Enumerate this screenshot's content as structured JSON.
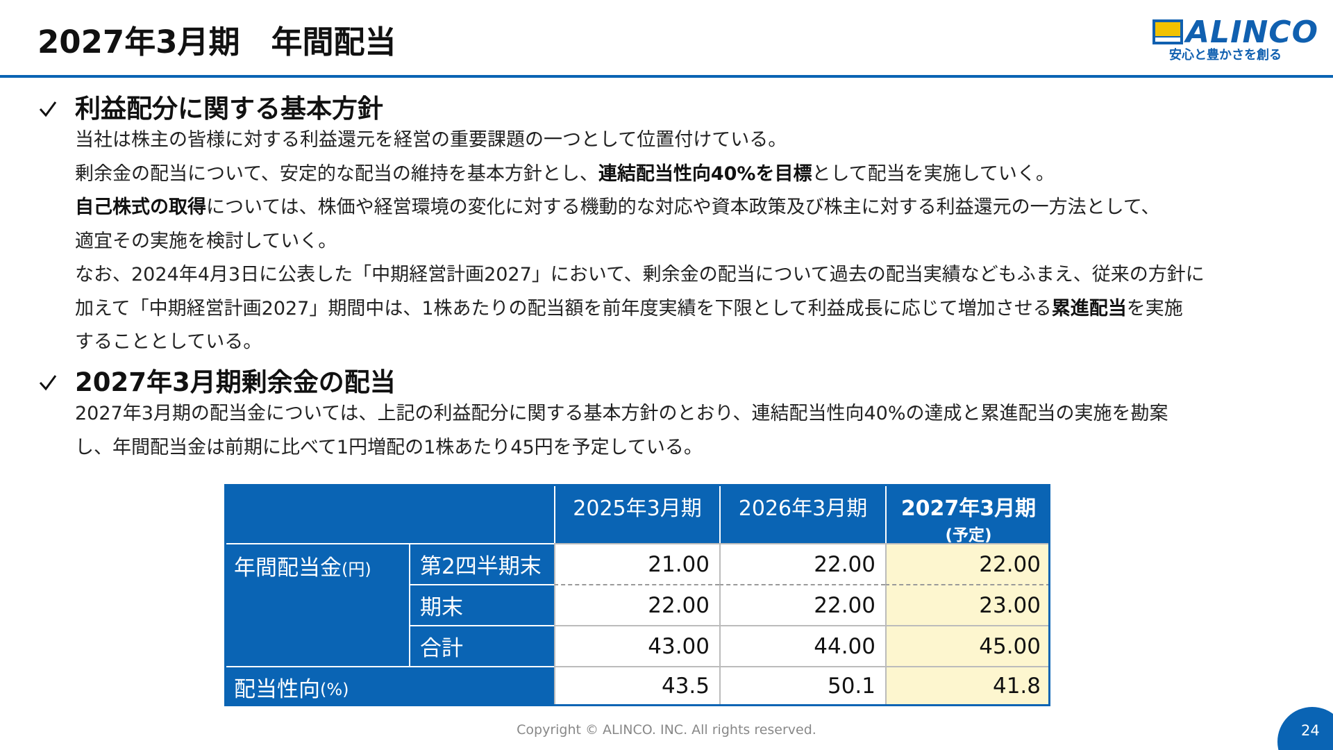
{
  "header": {
    "title": "2027年3月期　年間配当",
    "logo": {
      "brand": "ALINCO",
      "tagline": "安心と豊かさを創る"
    }
  },
  "sections": [
    {
      "heading": "利益配分に関する基本方針",
      "lines": [
        [
          {
            "text": "当社は株主の皆様に対する利益還元を経営の重要課題の一つとして位置付けている。"
          }
        ],
        [
          {
            "text": "剰余金の配当について、安定的な配当の維持を基本方針とし、"
          },
          {
            "text": "連結配当性向40%を目標",
            "bold": true
          },
          {
            "text": "として配当を実施していく。"
          }
        ],
        [
          {
            "text": "自己株式の取得",
            "bold": true
          },
          {
            "text": "については、株価や経営環境の変化に対する機動的な対応や資本政策及び株主に対する利益還元の一方法として、"
          }
        ],
        [
          {
            "text": "適宜その実施を検討していく。"
          }
        ],
        [
          {
            "text": "なお、2024年4月3日に公表した「中期経営計画2027」において、剰余金の配当について過去の配当実績などもふまえ、従来の方針に"
          }
        ],
        [
          {
            "text": "加えて「中期経営計画2027」期間中は、1株あたりの配当額を前年度実績を下限として利益成長に応じて増加させる"
          },
          {
            "text": "累進配当",
            "bold": true
          },
          {
            "text": "を実施"
          }
        ],
        [
          {
            "text": "することとしている。"
          }
        ]
      ]
    },
    {
      "heading": "2027年3月期剰余金の配当",
      "lines": [
        [
          {
            "text": "2027年3月期の配当金については、上記の利益配分に関する基本方針のとおり、連結配当性向40%の達成と累進配当の実施を勘案"
          }
        ],
        [
          {
            "text": "し、年間配当金は前期に比べて1円増配の1株あたり45円を予定している。"
          }
        ]
      ]
    }
  ],
  "table": {
    "columns": [
      {
        "text": "2025年3月期"
      },
      {
        "text": "2026年3月期"
      },
      {
        "text": "2027年3月期",
        "note": "(予定)",
        "highlight": true
      }
    ],
    "group": {
      "name": "年間配当金",
      "unit": "(円)",
      "rows": [
        {
          "label": "第2四半期末",
          "values": [
            "21.00",
            "22.00",
            "22.00"
          ]
        },
        {
          "label": "期末",
          "values": [
            "22.00",
            "22.00",
            "23.00"
          ]
        },
        {
          "label": "合計",
          "values": [
            "43.00",
            "44.00",
            "45.00"
          ]
        }
      ]
    },
    "ratio": {
      "name": "配当性向",
      "unit": "(%)",
      "values": [
        "43.5",
        "50.1",
        "41.8"
      ]
    }
  },
  "footer": {
    "copyright": "Copyright © ALINCO. INC. All rights reserved.",
    "page": "24"
  }
}
